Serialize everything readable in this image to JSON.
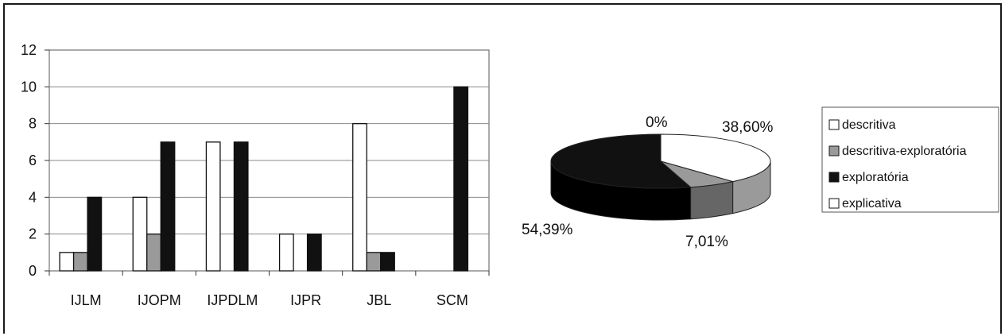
{
  "chart_data": [
    {
      "type": "bar",
      "categories": [
        "IJLM",
        "IJOPM",
        "IJPDLM",
        "IJPR",
        "JBL",
        "SCM"
      ],
      "series": [
        {
          "name": "descritiva",
          "values": [
            1,
            4,
            7,
            2,
            8,
            0
          ]
        },
        {
          "name": "descritiva-exploratória",
          "values": [
            1,
            2,
            0,
            0,
            1,
            0
          ]
        },
        {
          "name": "exploratória",
          "values": [
            4,
            7,
            7,
            2,
            1,
            10
          ]
        },
        {
          "name": "explicativa",
          "values": [
            0,
            0,
            0,
            0,
            0,
            0
          ]
        }
      ],
      "yticks": [
        "0",
        "2",
        "4",
        "6",
        "8",
        "10",
        "12"
      ],
      "ylim": [
        0,
        12
      ],
      "grid": true
    },
    {
      "type": "pie",
      "style": "3d",
      "slices": [
        {
          "name": "descritiva",
          "value": 38.6,
          "label": "38,60%",
          "color": "#ffffff"
        },
        {
          "name": "descritiva-exploratória",
          "value": 7.01,
          "label": "7,01%",
          "color": "#9a9a9a"
        },
        {
          "name": "exploratória",
          "value": 54.39,
          "label": "54,39%",
          "color": "#111111"
        },
        {
          "name": "explicativa",
          "value": 0,
          "label": "0%",
          "color": "#ffffff"
        }
      ],
      "legend": {
        "placement": "right",
        "entries": [
          {
            "label": "descritiva",
            "color": "#ffffff"
          },
          {
            "label": "descritiva-exploratória",
            "color": "#9a9a9a"
          },
          {
            "label": "exploratória",
            "color": "#111111"
          },
          {
            "label": "explicativa",
            "color": "#ffffff"
          }
        ]
      }
    }
  ]
}
